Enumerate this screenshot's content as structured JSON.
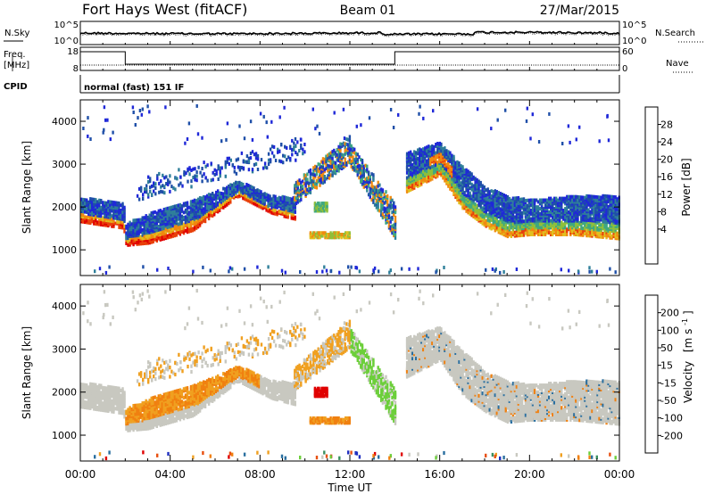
{
  "header": {
    "title": "Fort Hays West (fitACF)",
    "beam": "Beam 01",
    "date": "27/Mar/2015"
  },
  "noise_panel": {
    "left_label": "N.Sky",
    "left_ticks": [
      "10^5",
      "10^0"
    ],
    "right_label": "N.Search",
    "right_ticks": [
      "10^5",
      "10^0"
    ]
  },
  "freq_panel": {
    "left_label_1": "Freq.",
    "left_label_2": "[MHz]",
    "left_ticks": [
      "18",
      "8"
    ],
    "right_label": "Nave",
    "right_ticks": [
      "60",
      "0"
    ],
    "cpid_label": "CPID",
    "cpid_value": "normal (fast) 151 IF"
  },
  "colors": {
    "power": [
      "#1f28d8",
      "#1f4fa8",
      "#2f7f9a",
      "#3fa880",
      "#8fbf3a",
      "#e0c020",
      "#f08a10",
      "#e8400a",
      "#e00000"
    ],
    "velocity": [
      "#2030c0",
      "#2a6fa0",
      "#3a9060",
      "#6ccf3a",
      "#c8c8c0",
      "#f0a020",
      "#f08010",
      "#e85010",
      "#e00000"
    ]
  },
  "chart_data": [
    {
      "type": "heatmap",
      "name": "power",
      "ylabel": "Slant Range [km]",
      "xlim": [
        0,
        24
      ],
      "ylim": [
        400,
        4500
      ],
      "yticks": [
        1000,
        2000,
        3000,
        4000
      ],
      "colorbar": {
        "label": "Power [dB]",
        "ticks": [
          "28",
          "24",
          "20",
          "16",
          "12",
          "8",
          "4"
        ]
      }
    },
    {
      "type": "heatmap",
      "name": "velocity",
      "ylabel": "Slant Range [km]",
      "xlabel": "Time UT",
      "xlim": [
        0,
        24
      ],
      "ylim": [
        400,
        4500
      ],
      "yticks": [
        1000,
        2000,
        3000,
        4000
      ],
      "xticks": [
        "00:00",
        "04:00",
        "08:00",
        "12:00",
        "16:00",
        "20:00",
        "00:00"
      ],
      "colorbar": {
        "label_main": "Velocity",
        "label_unit": "[m s",
        "label_exp": "-1",
        "label_close": "]",
        "ticks": [
          "200",
          "100",
          "50",
          "15",
          "-15",
          "-50",
          "-100",
          "-200"
        ]
      }
    }
  ]
}
